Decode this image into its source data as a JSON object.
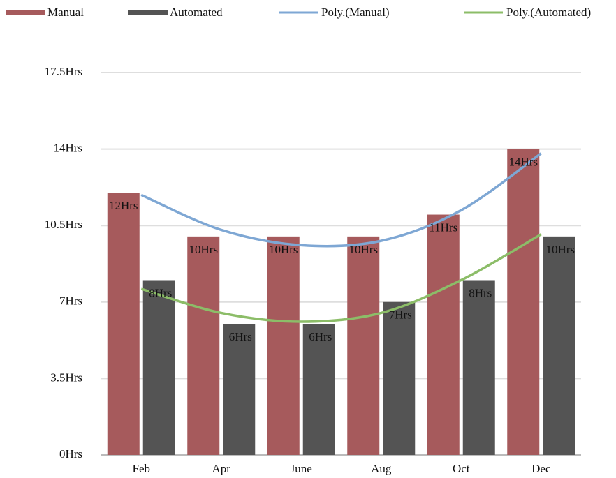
{
  "chart_data": {
    "type": "bar",
    "categories": [
      "Feb",
      "Apr",
      "June",
      "Aug",
      "Oct",
      "Dec"
    ],
    "series": [
      {
        "name": "Manual",
        "type": "bar",
        "color": "#a65a5c",
        "values": [
          12,
          10,
          10,
          10,
          11,
          14
        ],
        "value_labels": [
          "12Hrs",
          "10Hrs",
          "10Hrs",
          "10Hrs",
          "11Hrs",
          "14Hrs"
        ]
      },
      {
        "name": "Automated",
        "type": "bar",
        "color": "#545454",
        "values": [
          8,
          6,
          6,
          7,
          8,
          10
        ],
        "value_labels": [
          "8Hrs",
          "6Hrs",
          "6Hrs",
          "7Hrs",
          "8Hrs",
          "10Hrs"
        ]
      },
      {
        "name": "Poly.(Manual)",
        "type": "line",
        "color": "#7ea7d4",
        "values": [
          11.9,
          10.3,
          9.6,
          9.8,
          11.2,
          13.8
        ]
      },
      {
        "name": "Poly.(Automated)",
        "type": "line",
        "color": "#8cbd68",
        "values": [
          7.6,
          6.5,
          6.1,
          6.5,
          8.0,
          10.1
        ]
      }
    ],
    "ylim": [
      0,
      17.5
    ],
    "yticks": [
      {
        "value": 0,
        "label": "0Hrs"
      },
      {
        "value": 3.5,
        "label": "3.5Hrs"
      },
      {
        "value": 7,
        "label": "7Hrs"
      },
      {
        "value": 10.5,
        "label": "10.5Hrs"
      },
      {
        "value": 14,
        "label": "14Hrs"
      },
      {
        "value": 17.5,
        "label": "17.5Hrs"
      }
    ],
    "grid": true,
    "legend": "top"
  }
}
